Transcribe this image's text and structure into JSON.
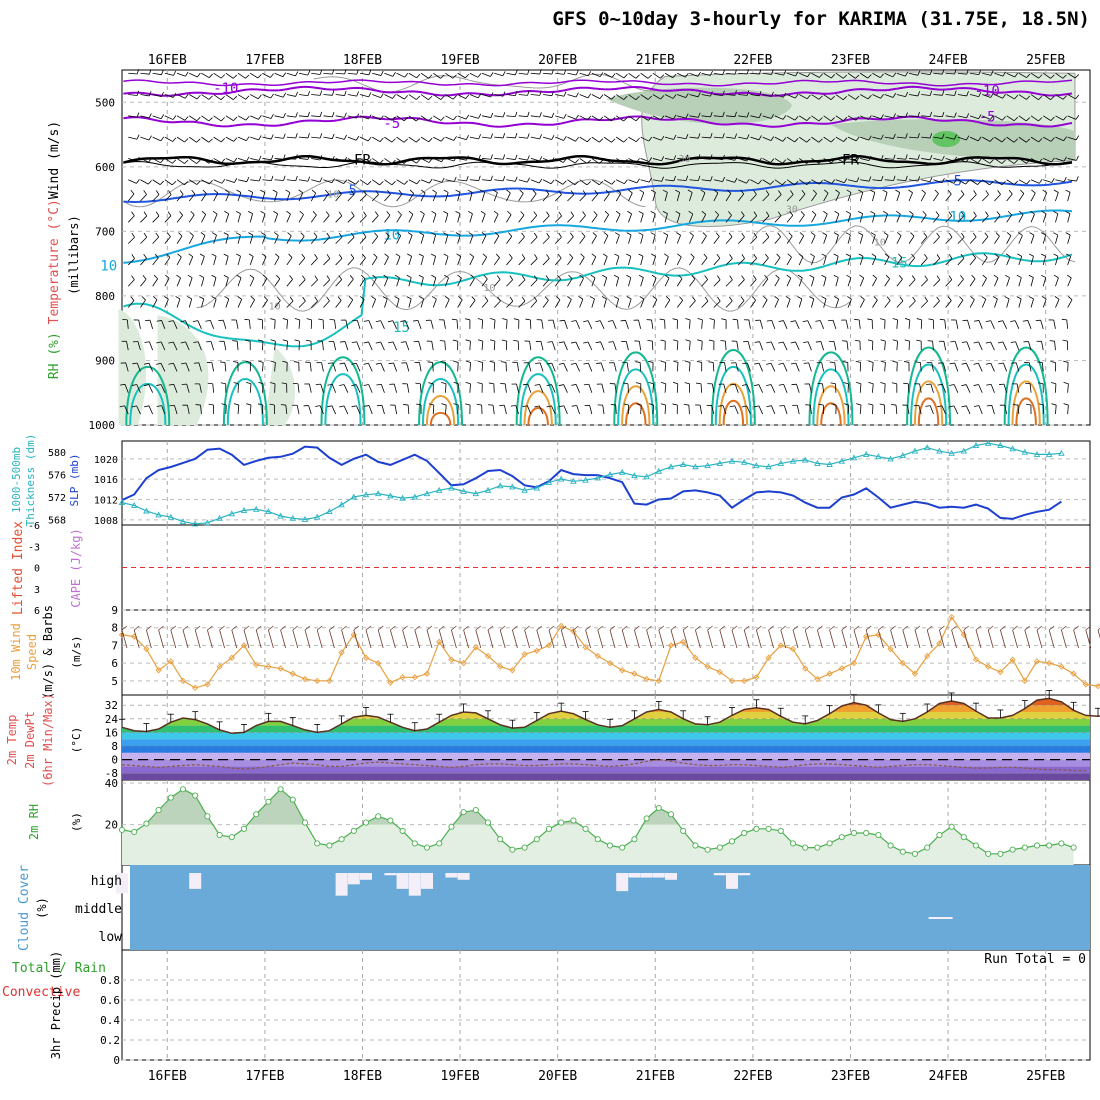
{
  "title": "GFS 0~10day 3-hourly for KARIMA (31.75E, 18.5N)",
  "run_total": "Run Total = 0",
  "colors": {
    "rh_fill": "#9ab79a",
    "wind_barb": "#000000",
    "temp_neg": "#9400d3",
    "temp_freezing": "#000000",
    "temp_pos": [
      "#1f55e0",
      "#17a7e0",
      "#18c0c0",
      "#14b890",
      "#e8a23a",
      "#e07020",
      "#e0108a"
    ],
    "slp": "#1c3fd0",
    "thickness": "#2ab3c0",
    "wind10m": "#e8a040",
    "rh2m": "#4caf50",
    "cloud_bg": "#6aaad8",
    "cloud_clear": "#f4eef8",
    "lifted_zero": "#e03030"
  },
  "chart_data": [
    {
      "type": "heatmap",
      "name": "upper-air",
      "ylabel_parts": [
        "Wind (m/s)",
        "Temperature (°C)",
        "RH (%)"
      ],
      "ylabel_units": "(millibars)",
      "y_ticks": [
        500,
        600,
        700,
        800,
        900,
        1000
      ],
      "x_ticks": [
        "16FEB",
        "17FEB",
        "18FEB",
        "19FEB",
        "20FEB",
        "21FEB",
        "22FEB",
        "23FEB",
        "24FEB",
        "25FEB"
      ],
      "contour_labels": [
        {
          "text": "-10",
          "color": "#9400d3",
          "day": 16.6,
          "p": 478
        },
        {
          "text": "-10",
          "color": "#9400d3",
          "day": 24.4,
          "p": 482
        },
        {
          "text": "-5",
          "color": "#9400d3",
          "day": 18.3,
          "p": 532
        },
        {
          "text": "-5",
          "color": "#9400d3",
          "day": 24.4,
          "p": 522
        },
        {
          "text": "FR",
          "color": "#000000",
          "day": 18.0,
          "p": 589
        },
        {
          "text": "FR",
          "color": "#000000",
          "day": 23.0,
          "p": 589
        },
        {
          "text": "5",
          "color": "#1f55e0",
          "day": 17.9,
          "p": 636
        },
        {
          "text": "5",
          "color": "#1f55e0",
          "day": 24.1,
          "p": 621
        },
        {
          "text": "10",
          "color": "#17a7e0",
          "day": 18.3,
          "p": 705
        },
        {
          "text": "10",
          "color": "#17a7e0",
          "day": 24.1,
          "p": 677
        },
        {
          "text": "10",
          "color": "#17a7e0",
          "day": 15.4,
          "p": 753
        },
        {
          "text": "15",
          "color": "#18c0c0",
          "day": 23.5,
          "p": 748
        },
        {
          "text": "15",
          "color": "#18c0c0",
          "day": 18.4,
          "p": 848
        },
        {
          "text": "10",
          "color": "#999999",
          "day": 17.7,
          "p": 640
        },
        {
          "text": "10",
          "color": "#999999",
          "day": 19.3,
          "p": 785
        },
        {
          "text": "10",
          "color": "#999999",
          "day": 17.1,
          "p": 813
        },
        {
          "text": "30",
          "color": "#999999",
          "day": 21.3,
          "p": 585
        },
        {
          "text": "30",
          "color": "#999999",
          "day": 22.4,
          "p": 663
        },
        {
          "text": "10",
          "color": "#999999",
          "day": 23.3,
          "p": 714
        }
      ]
    },
    {
      "type": "line",
      "name": "slp-thickness",
      "ylabel_left": "Thickness 1000-500mb (dm)",
      "ylabel_right": "SLP (mb)",
      "left_ticks": [
        568,
        572,
        576,
        580
      ],
      "right_ticks": [
        1008,
        1012,
        1016,
        1020
      ],
      "series": [
        {
          "name": "SLP (mb)",
          "values": [
            1011.9,
            1013,
            1016.2,
            1017.8,
            1018.4,
            1019.2,
            1020,
            1021.8,
            1022,
            1020.8,
            1018.8,
            1019.6,
            1020.2,
            1020.4,
            1021,
            1022.4,
            1022.2,
            1020.2,
            1018.8,
            1020,
            1020.8,
            1019.4,
            1018.8,
            1019.8,
            1020.8,
            1019.6,
            1017.2,
            1014.8,
            1015,
            1016.2,
            1017.6,
            1017.8,
            1016.6,
            1014.8,
            1014.4,
            1015.6,
            1017.8,
            1017,
            1016.8,
            1016.8,
            1016.2,
            1015.4,
            1011.2,
            1011,
            1012,
            1012.2,
            1013.6,
            1013.8,
            1013.4,
            1012.8,
            1010.4,
            1012,
            1013.4,
            1013.6,
            1013.4,
            1012.8,
            1011.4,
            1010.4,
            1010.4,
            1012.4,
            1013,
            1014.2,
            1012.4,
            1010.4,
            1011,
            1011.6,
            1011.2,
            1010.4,
            1010.6,
            1010.4,
            1011,
            1010.2,
            1008.4,
            1008.2,
            1009,
            1009.6,
            1010,
            1011.6
          ]
        },
        {
          "name": "Thickness (dm)",
          "values": [
            571.0,
            570.5,
            569.5,
            568.8,
            568.4,
            567.6,
            567.2,
            567.4,
            568.2,
            569.0,
            569.6,
            569.8,
            569.4,
            568.6,
            568.2,
            568.0,
            568.4,
            569.4,
            570.6,
            572.0,
            572.4,
            572.6,
            572.2,
            571.8,
            572.0,
            572.6,
            573.2,
            573.6,
            573.0,
            572.6,
            573.2,
            574.0,
            573.8,
            573.2,
            573.6,
            574.6,
            575.2,
            574.8,
            575.0,
            575.4,
            576.0,
            576.4,
            575.8,
            575.6,
            576.6,
            577.4,
            577.8,
            577.4,
            577.6,
            578.0,
            578.4,
            578.2,
            577.6,
            577.4,
            578.0,
            578.4,
            578.6,
            578.0,
            577.8,
            578.4,
            579.0,
            579.6,
            579.2,
            578.8,
            579.4,
            580.2,
            580.8,
            580.2,
            579.8,
            580.2,
            581.2,
            581.6,
            581.2,
            580.6,
            580.0,
            579.6,
            579.6,
            579.8
          ]
        }
      ]
    },
    {
      "type": "line",
      "name": "lifted-cape",
      "ylabel_left": "Lifted Index",
      "ylabel_right": "CAPE (J/kg)",
      "left_ticks": [
        "-6",
        "-3",
        "0",
        "3",
        "6"
      ],
      "values_note": "No CAPE; lifted-index zero reference line only"
    },
    {
      "type": "line",
      "name": "10m-wind",
      "ylabel": "10m Wind Speed (m/s) & Barbs",
      "y_ticks": [
        5,
        6,
        7,
        8,
        9
      ],
      "series": [
        {
          "name": "10m Wind Speed (m/s)",
          "values": [
            7.6,
            7.5,
            6.8,
            5.6,
            6.1,
            5.0,
            4.6,
            4.8,
            5.8,
            6.3,
            7.0,
            5.9,
            5.8,
            5.7,
            5.4,
            5.1,
            5.0,
            5.0,
            6.6,
            7.6,
            6.3,
            6.0,
            4.9,
            5.2,
            5.2,
            5.4,
            7.2,
            6.2,
            6.0,
            6.9,
            6.4,
            5.8,
            5.6,
            6.5,
            6.7,
            7.0,
            8.1,
            7.8,
            6.9,
            6.4,
            6.0,
            5.6,
            5.4,
            5.1,
            5.0,
            7.0,
            7.2,
            6.3,
            5.8,
            5.5,
            5.0,
            5.0,
            5.2,
            6.3,
            7.0,
            6.8,
            5.7,
            5.1,
            5.4,
            5.7,
            6.0,
            7.5,
            7.6,
            6.8,
            6.0,
            5.4,
            6.4,
            7.1,
            8.6,
            7.6,
            6.2,
            5.8,
            5.5,
            6.2,
            5.0,
            6.1,
            6.0,
            5.8,
            5.4,
            4.8,
            4.7,
            5.3,
            6.1
          ]
        }
      ]
    },
    {
      "type": "area",
      "name": "2m-temp",
      "ylabel": "2m Temp 2m DewPt (6hr Min/Max) (°C)",
      "y_ticks": [
        32,
        24,
        16,
        8,
        0,
        -8
      ],
      "series": [
        {
          "name": "2m Temp",
          "values": [
            19,
            17,
            16.5,
            18,
            22,
            24.5,
            23.5,
            21,
            17.5,
            15.5,
            16,
            20,
            22.5,
            22.5,
            20,
            17.5,
            16,
            17,
            21,
            25,
            26,
            25,
            22,
            19,
            17,
            18,
            22,
            26,
            28,
            27.5,
            24,
            20.5,
            18.5,
            19,
            23,
            27,
            28.5,
            27,
            23.5,
            20.5,
            19,
            20,
            24,
            28,
            29.5,
            28,
            24,
            21,
            20.5,
            22,
            26,
            29.5,
            30.5,
            29.5,
            25.5,
            22,
            21,
            23,
            27,
            31.5,
            33.5,
            32,
            27.5,
            23.5,
            22.5,
            24,
            28,
            33,
            34.5,
            33,
            28.5,
            24.5,
            24.5,
            26,
            30,
            35,
            36,
            34,
            29,
            26,
            25.5,
            27
          ]
        },
        {
          "name": "2m DewPt",
          "values": [
            -3,
            -3.5,
            -4,
            -4.5,
            -4,
            -3.5,
            -3,
            -3.5,
            -4,
            -5,
            -5.5,
            -5,
            -4,
            -3,
            -2,
            -2.5,
            -3,
            -4,
            -4,
            -3,
            -2,
            -1.5,
            -2,
            -2.5,
            -3,
            -3.5,
            -4,
            -4.5,
            -4,
            -3,
            -2.5,
            -2.5,
            -3,
            -3.5,
            -3.5,
            -3,
            -2.5,
            -2.5,
            -3,
            -3.5,
            -4,
            -3.5,
            -2.5,
            -1,
            0,
            -1,
            -2,
            -3,
            -3.5,
            -3.5,
            -3,
            -3,
            -3.5,
            -4,
            -4.5,
            -4,
            -3,
            -2.5,
            -2.5,
            -3,
            -3.5,
            -4,
            -4.5,
            -4,
            -3.5,
            -3,
            -3,
            -3.5,
            -4,
            -4.5,
            -5,
            -5,
            -4.5,
            -4.5,
            -5,
            -5.5,
            -6,
            -6,
            -6.5,
            -6.5
          ]
        }
      ]
    },
    {
      "type": "area",
      "name": "2m-rh",
      "ylabel": "2m RH (%)",
      "y_ticks": [
        20,
        40
      ],
      "series": [
        {
          "name": "2m RH",
          "values": [
            17.5,
            16.5,
            20.5,
            27,
            33,
            37,
            34,
            24,
            15,
            14,
            18,
            25,
            31,
            37,
            32,
            21,
            11,
            10,
            13,
            17,
            21,
            24,
            22,
            17,
            11,
            9,
            11,
            19,
            26,
            27,
            21,
            13,
            8,
            9,
            13,
            18,
            21,
            22,
            18,
            13,
            10,
            9,
            13,
            23,
            28,
            25,
            17,
            10,
            8,
            9,
            12,
            16,
            18,
            18,
            17,
            11,
            9,
            9,
            11,
            14,
            16,
            16,
            15,
            10,
            7,
            6,
            9,
            15,
            19,
            14,
            10,
            6,
            6,
            8,
            9,
            10,
            10,
            11,
            9
          ]
        }
      ]
    },
    {
      "type": "bar",
      "name": "cloud-cover",
      "ylabel": "Cloud Cover (%)",
      "y_ticks": [
        "high",
        "middle",
        "low"
      ],
      "series": [
        {
          "name": "high",
          "values": [
            90,
            0,
            0,
            0,
            0,
            0,
            70,
            0,
            0,
            0,
            0,
            0,
            0,
            0,
            0,
            0,
            0,
            0,
            100,
            50,
            30,
            0,
            10,
            70,
            100,
            70,
            0,
            20,
            30,
            0,
            0,
            0,
            0,
            0,
            0,
            0,
            0,
            0,
            0,
            0,
            0,
            80,
            20,
            20,
            20,
            30,
            0,
            0,
            0,
            10,
            70,
            10,
            0,
            0,
            0,
            0,
            0,
            0,
            0,
            0,
            0,
            0,
            0,
            0,
            0,
            0,
            0,
            0,
            0,
            0,
            0,
            0,
            0,
            0,
            0,
            0,
            0,
            0,
            0,
            0
          ]
        },
        {
          "name": "middle",
          "values": [
            0,
            0,
            0,
            0,
            0,
            0,
            0,
            0,
            0,
            0,
            0,
            0,
            0,
            0,
            0,
            0,
            0,
            0,
            0,
            0,
            0,
            0,
            0,
            0,
            0,
            0,
            0,
            0,
            0,
            0,
            0,
            0,
            0,
            0,
            0,
            0,
            0,
            0,
            0,
            0,
            0,
            0,
            0,
            0,
            0,
            0,
            0,
            0,
            0,
            0,
            0,
            0,
            0,
            0,
            0,
            0,
            0,
            0,
            0,
            0,
            0,
            0,
            0,
            0,
            0,
            0,
            0,
            0,
            0,
            0,
            0,
            0,
            0,
            0,
            0,
            0,
            0,
            0,
            0,
            0
          ]
        },
        {
          "name": "low",
          "values": [
            0,
            0,
            0,
            0,
            0,
            0,
            0,
            0,
            0,
            0,
            0,
            0,
            0,
            0,
            0,
            0,
            0,
            0,
            0,
            0,
            0,
            0,
            0,
            0,
            0,
            0,
            0,
            0,
            0,
            0,
            0,
            0,
            0,
            0,
            0,
            0,
            0,
            0,
            0,
            0,
            0,
            0,
            0,
            0,
            0,
            0,
            0,
            0,
            0,
            0,
            0,
            0,
            0,
            0,
            0,
            0,
            0,
            0,
            0,
            0,
            0,
            0,
            0,
            0,
            0,
            0,
            0,
            0,
            0,
            0,
            0,
            0,
            0,
            0,
            0,
            0,
            0,
            0,
            0,
            0
          ]
        }
      ]
    },
    {
      "type": "bar",
      "name": "precip",
      "ylabel_left": "Total / Rain",
      "ylabel_left2": "Convective",
      "ylabel": "3hr Precip (mm)",
      "y_ticks": [
        "0",
        "0.2",
        "0.4",
        "0.6",
        "0.8"
      ],
      "run_total": 0
    }
  ],
  "labels": {
    "wind_label": "Wind (m/s)",
    "temp_label": "Temperature (°C)",
    "rh_label": "RH (%)",
    "mb_label": "(millibars)",
    "thick_label": "1000-500mb",
    "thick_label2": "Thickness (dm)",
    "slp_label": "SLP (mb)",
    "lifted_label": "Lifted Index",
    "cape_label": "CAPE (J/kg)",
    "wind10_label1": "10m Wind",
    "wind10_label2": "Speed",
    "wind10_label3": "(m/s) & Barbs",
    "temp2_label1": "2m Temp",
    "temp2_label2": "2m DewPt",
    "temp2_label3": "(6hr Min/Max)",
    "temp2_units": "(°C)",
    "rh2_label": "2m RH",
    "rh2_units": "(%)",
    "cloud_label": "Cloud Cover",
    "cloud_units": "(%)",
    "precip_label1": "Total / Rain",
    "precip_label2": "Convective",
    "precip_label3": "3hr Precip (mm)"
  }
}
